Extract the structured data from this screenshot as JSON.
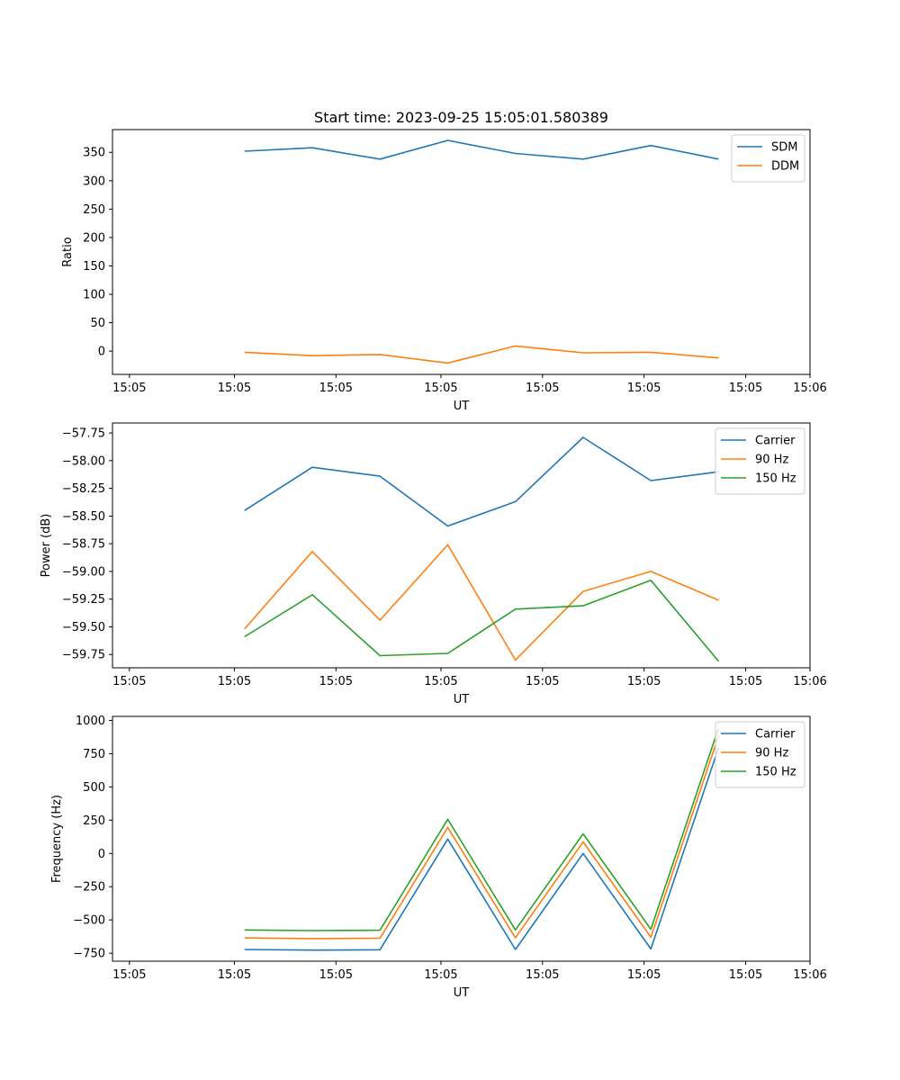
{
  "figure": {
    "title": "Start time: 2023-09-25 15:05:01.580389"
  },
  "chart_data": [
    {
      "type": "line",
      "title": "Start time: 2023-09-25 15:05:01.580389",
      "xlabel": "UT",
      "ylabel": "Ratio",
      "x": [
        1,
        2,
        3,
        4,
        5,
        6,
        7,
        8
      ],
      "xlim": [
        -0.95,
        9.35
      ],
      "xticks": [
        -0.7,
        0.85,
        2.35,
        3.9,
        5.4,
        6.9,
        8.4,
        9.35
      ],
      "xtick_labels": [
        "15:05",
        "15:05",
        "15:05",
        "15:05",
        "15:05",
        "15:05",
        "15:05",
        "15:06"
      ],
      "ylim": [
        -41,
        390
      ],
      "yticks": [
        0,
        50,
        100,
        150,
        200,
        250,
        300,
        350
      ],
      "ytick_labels": [
        "0",
        "50",
        "100",
        "150",
        "200",
        "250",
        "300",
        "350"
      ],
      "legend": "top-right",
      "series": [
        {
          "name": "SDM",
          "color": "#1f77b4",
          "values": [
            352,
            358,
            338,
            371,
            348,
            338,
            362,
            338
          ]
        },
        {
          "name": "DDM",
          "color": "#ff7f0e",
          "values": [
            -2,
            -8,
            -6,
            -21,
            9,
            -3,
            -2,
            -12
          ]
        }
      ]
    },
    {
      "type": "line",
      "title": "",
      "xlabel": "UT",
      "ylabel": "Power (dB)",
      "x": [
        1,
        2,
        3,
        4,
        5,
        6,
        7,
        8
      ],
      "xlim": [
        -0.95,
        9.35
      ],
      "xticks": [
        -0.7,
        0.85,
        2.35,
        3.9,
        5.4,
        6.9,
        8.4,
        9.35
      ],
      "xtick_labels": [
        "15:05",
        "15:05",
        "15:05",
        "15:05",
        "15:05",
        "15:05",
        "15:05",
        "15:06"
      ],
      "ylim": [
        -59.87,
        -57.66
      ],
      "yticks": [
        -59.75,
        -59.5,
        -59.25,
        -59.0,
        -58.75,
        -58.5,
        -58.25,
        -58.0,
        -57.75
      ],
      "ytick_labels": [
        "−59.75",
        "−59.50",
        "−59.25",
        "−59.00",
        "−58.75",
        "−58.50",
        "−58.25",
        "−58.00",
        "−57.75"
      ],
      "legend": "top-right",
      "series": [
        {
          "name": "Carrier",
          "color": "#1f77b4",
          "values": [
            -58.45,
            -58.06,
            -58.14,
            -58.59,
            -58.37,
            -57.79,
            -58.18,
            -58.1
          ]
        },
        {
          "name": "90 Hz",
          "color": "#ff7f0e",
          "values": [
            -59.52,
            -58.82,
            -59.44,
            -58.76,
            -59.8,
            -59.18,
            -59.0,
            -59.26
          ]
        },
        {
          "name": "150 Hz",
          "color": "#2ca02c",
          "values": [
            -59.59,
            -59.21,
            -59.76,
            -59.74,
            -59.34,
            -59.31,
            -59.08,
            -59.81
          ]
        }
      ]
    },
    {
      "type": "line",
      "title": "",
      "xlabel": "UT",
      "ylabel": "Frequency (Hz)",
      "x": [
        1,
        2,
        3,
        4,
        5,
        6,
        7,
        8
      ],
      "xlim": [
        -0.95,
        9.35
      ],
      "xticks": [
        -0.7,
        0.85,
        2.35,
        3.9,
        5.4,
        6.9,
        8.4,
        9.35
      ],
      "xtick_labels": [
        "15:05",
        "15:05",
        "15:05",
        "15:05",
        "15:05",
        "15:05",
        "15:05",
        "15:06"
      ],
      "ylim": [
        -810,
        1030
      ],
      "yticks": [
        -750,
        -500,
        -250,
        0,
        250,
        500,
        750,
        1000
      ],
      "ytick_labels": [
        "−750",
        "−500",
        "−250",
        "0",
        "250",
        "500",
        "750",
        "1000"
      ],
      "legend": "top-right",
      "series": [
        {
          "name": "Carrier",
          "color": "#1f77b4",
          "values": [
            -722,
            -727,
            -724,
            108,
            -722,
            0,
            -718,
            795
          ]
        },
        {
          "name": "90 Hz",
          "color": "#ff7f0e",
          "values": [
            -635,
            -640,
            -637,
            196,
            -635,
            87,
            -630,
            883
          ]
        },
        {
          "name": "150 Hz",
          "color": "#2ca02c",
          "values": [
            -575,
            -580,
            -577,
            257,
            -575,
            147,
            -570,
            943
          ]
        }
      ]
    }
  ]
}
